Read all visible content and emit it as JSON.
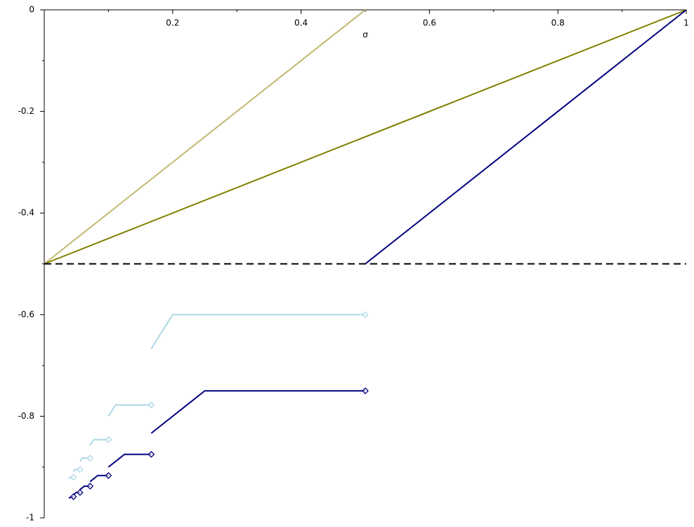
{
  "chart_data": {
    "type": "line",
    "xlabel": "σ",
    "xlim": [
      0,
      1
    ],
    "ylim": [
      -1,
      0
    ],
    "xticks": [
      0.2,
      0.4,
      0.6,
      0.8,
      1
    ],
    "yticks": [
      -1,
      -0.8,
      -0.6,
      -0.4,
      -0.2,
      0
    ],
    "xminorticks": [
      0.1,
      0.3,
      0.5,
      0.7,
      0.9
    ],
    "yminorticks": [
      -0.9,
      -0.7,
      -0.5,
      -0.3,
      -0.1
    ],
    "series": [
      {
        "color": "#c2b872",
        "dash": false,
        "markers": false,
        "x": [
          0,
          0.5
        ],
        "values": [
          -0.5,
          0
        ]
      },
      {
        "color": "#808000",
        "dash": false,
        "markers": false,
        "x": [
          0,
          1
        ],
        "values": [
          -0.5,
          0
        ]
      },
      {
        "color": "#000080",
        "dash": false,
        "markers": false,
        "x": [
          0.5,
          1
        ],
        "values": [
          -0.5,
          0
        ]
      },
      {
        "color": "#000000",
        "dash": true,
        "markers": false,
        "x": [
          0,
          1
        ],
        "values": [
          -0.5,
          -0.5
        ]
      },
      {
        "color": "#add8e6",
        "dash": false,
        "markers": true,
        "x": [
          0.1667,
          0.2,
          0.5,
          null,
          0.1,
          0.1111,
          0.1667,
          null,
          0.0714,
          0.0769,
          0.1,
          null,
          0.0556,
          0.0588,
          0.0714,
          null,
          0.0455,
          0.0476,
          0.0556,
          null,
          0.0385,
          0.04,
          0.0455
        ],
        "values": [
          -0.6667,
          -0.6,
          -0.6,
          null,
          -0.8,
          -0.7778,
          -0.7778,
          null,
          -0.8571,
          -0.8462,
          -0.8462,
          null,
          -0.8889,
          -0.8824,
          -0.8824,
          null,
          -0.9091,
          -0.9048,
          -0.9048,
          null,
          -0.9231,
          -0.92,
          -0.92
        ]
      },
      {
        "color": "#000080",
        "dash": false,
        "markers": true,
        "x": [
          0.1667,
          0.25,
          0.5,
          null,
          0.1,
          0.125,
          0.1667,
          null,
          0.0714,
          0.0833,
          0.1,
          null,
          0.0556,
          0.0625,
          0.0714,
          null,
          0.0455,
          0.05,
          0.0556,
          null,
          0.0385,
          0.0417,
          0.0455
        ],
        "values": [
          -0.8333,
          -0.75,
          -0.75,
          null,
          -0.9,
          -0.875,
          -0.875,
          null,
          -0.9286,
          -0.9167,
          -0.9167,
          null,
          -0.9444,
          -0.9375,
          -0.9375,
          null,
          -0.9545,
          -0.95,
          -0.95,
          null,
          -0.9615,
          -0.9583,
          -0.9583
        ]
      }
    ]
  }
}
